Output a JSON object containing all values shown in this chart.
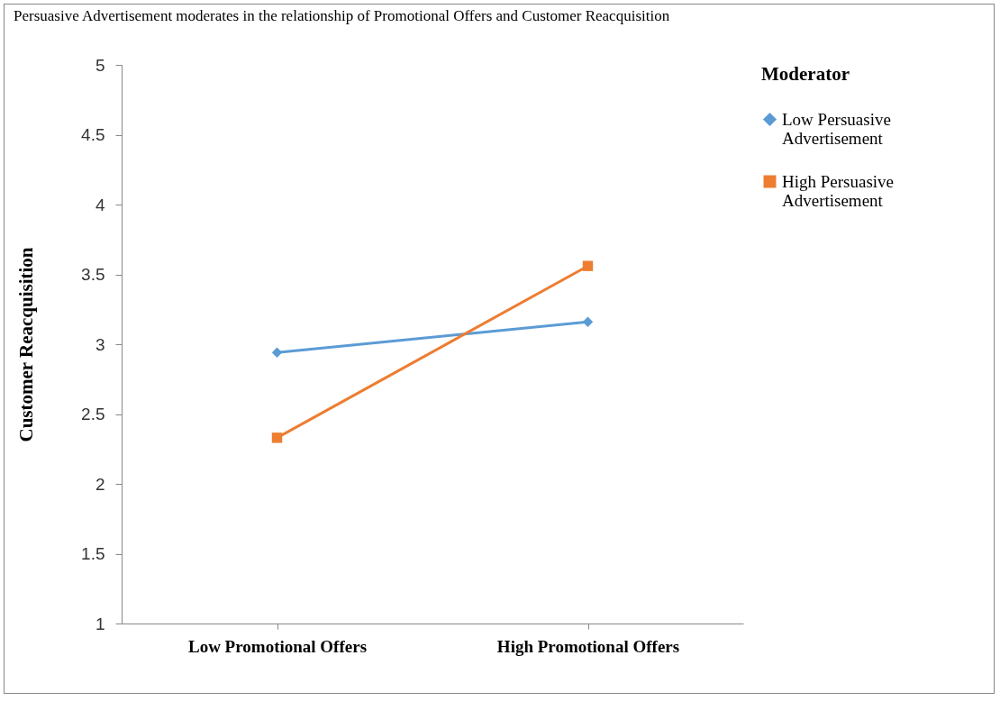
{
  "chart_data": {
    "type": "line",
    "title": "Persuasive Advertisement moderates in the relationship of Promotional Offers and Customer Reacquisition",
    "ylabel": "Customer Reacquisition",
    "legend_title": "Moderator",
    "categories": [
      "Low Promotional Offers",
      "High Promotional Offers"
    ],
    "series": [
      {
        "name": "Low Persuasive Advertisement",
        "color": "#5b9bd5",
        "marker": "diamond",
        "values": [
          2.94,
          3.16
        ]
      },
      {
        "name": "High Persuasive Advertisement",
        "color": "#ed7d31",
        "marker": "square",
        "values": [
          2.33,
          3.56
        ]
      }
    ],
    "ylim": [
      1,
      5
    ],
    "yticks": [
      1,
      1.5,
      2,
      2.5,
      3,
      3.5,
      4,
      4.5,
      5
    ],
    "grid": false,
    "legend": "right"
  }
}
